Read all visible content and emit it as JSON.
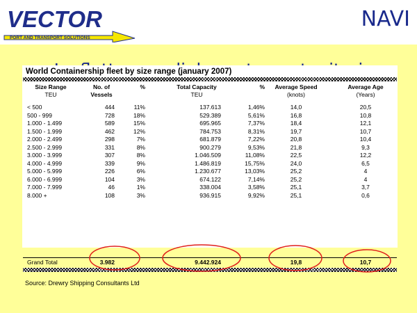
{
  "header": {
    "logo_text": "VECTOR",
    "logo_subtitle": "PORT AND TRANSPORT SOLUTIONS",
    "section_label": "NAVI"
  },
  "slide": {
    "title": "La flotta mondiale porta contenitori"
  },
  "table": {
    "title": "World Containership fleet by size range (january 2007)",
    "headers": [
      "Size Range",
      "No. of",
      "%",
      "Total Capacity",
      "%",
      "Average Speed",
      "Average Age"
    ],
    "units": [
      "TEU",
      "Vessels",
      "",
      "TEU",
      "",
      "(knots)",
      "(Years)"
    ],
    "rows": [
      [
        "< 500",
        "444",
        "11%",
        "137.613",
        "1,46%",
        "14,0",
        "20,5"
      ],
      [
        "500 - 999",
        "728",
        "18%",
        "529.389",
        "5,61%",
        "16,8",
        "10,8"
      ],
      [
        "1.000 - 1.499",
        "589",
        "15%",
        "695.965",
        "7,37%",
        "18,4",
        "12,1"
      ],
      [
        "1.500 - 1.999",
        "462",
        "12%",
        "784.753",
        "8,31%",
        "19,7",
        "10,7"
      ],
      [
        "2.000 - 2.499",
        "298",
        "7%",
        "681.879",
        "7,22%",
        "20,8",
        "10,4"
      ],
      [
        "2.500 - 2.999",
        "331",
        "8%",
        "900.279",
        "9,53%",
        "21,8",
        "9,3"
      ],
      [
        "3.000 - 3.999",
        "307",
        "8%",
        "1.046.509",
        "11,08%",
        "22,5",
        "12,2"
      ],
      [
        "4.000 - 4.999",
        "339",
        "9%",
        "1.486.819",
        "15,75%",
        "24,0",
        "6,5"
      ],
      [
        "5.000 - 5.999",
        "226",
        "6%",
        "1.230.677",
        "13,03%",
        "25,2",
        "4"
      ],
      [
        "6.000 - 6.999",
        "104",
        "3%",
        "674.122",
        "7,14%",
        "25,2",
        "4"
      ],
      [
        "7.000 - 7.999",
        "46",
        "1%",
        "338.004",
        "3,58%",
        "25,1",
        "3,7"
      ],
      [
        "8.000 +",
        "108",
        "3%",
        "936.915",
        "9,92%",
        "25,1",
        "0,6"
      ]
    ],
    "grand_total": {
      "label": "Grand Total",
      "vessels": "3.982",
      "capacity": "9.442.924",
      "speed": "19,8",
      "age": "10,7"
    },
    "source": "Source: Drewry Shipping Consultants Ltd"
  },
  "colors": {
    "slide_background": "#ffff99",
    "title_blue": "#1a2a8c",
    "logo_blue": "#1f2d8a",
    "logo_yellow": "#f5e600",
    "highlight_oval": "#e0201c"
  }
}
